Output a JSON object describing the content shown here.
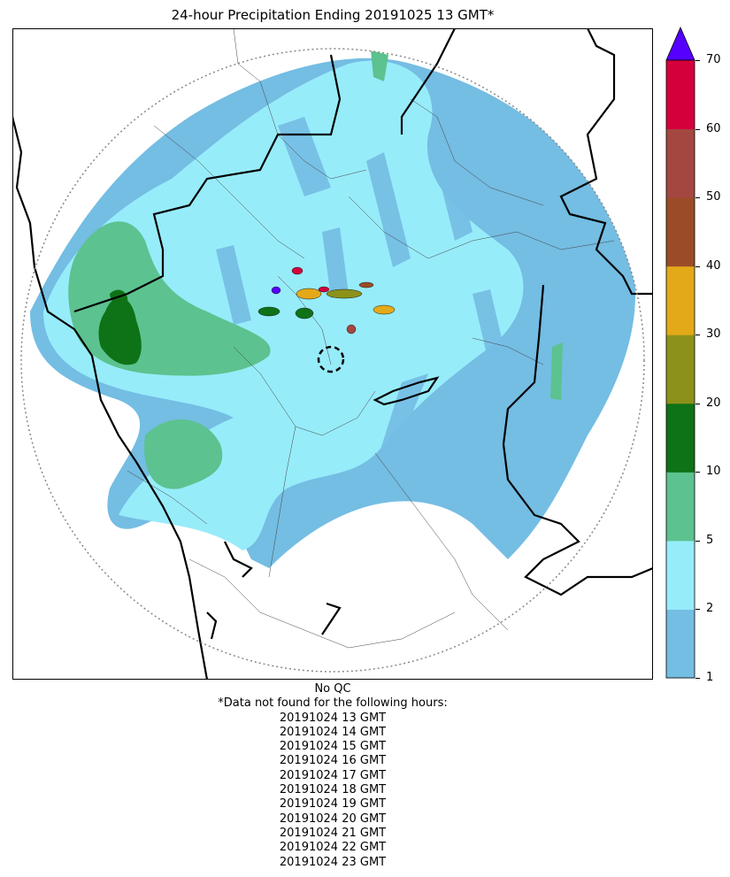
{
  "title": "24-hour Precipitation Ending 20191025 13 GMT*",
  "colorbar": {
    "levels": [
      1,
      2,
      5,
      10,
      20,
      30,
      40,
      50,
      60,
      70
    ],
    "tick_labels": [
      "1",
      "2",
      "5",
      "10",
      "20",
      "30",
      "40",
      "50",
      "60",
      "70"
    ],
    "colors": [
      "#74bde3",
      "#97ecfa",
      "#5cc28f",
      "#0e7217",
      "#8c9219",
      "#e3a918",
      "#9b4c27",
      "#a44740",
      "#d4003c"
    ],
    "extend_color": "#5500ff"
  },
  "notes": {
    "qc": "No QC",
    "missing_header": "*Data not found for the following hours:",
    "missing_hours": [
      "20191024 13 GMT",
      "20191024 14 GMT",
      "20191024 15 GMT",
      "20191024 16 GMT",
      "20191024 17 GMT",
      "20191024 18 GMT",
      "20191024 19 GMT",
      "20191024 20 GMT",
      "20191024 21 GMT",
      "20191024 22 GMT",
      "20191024 23 GMT"
    ]
  }
}
